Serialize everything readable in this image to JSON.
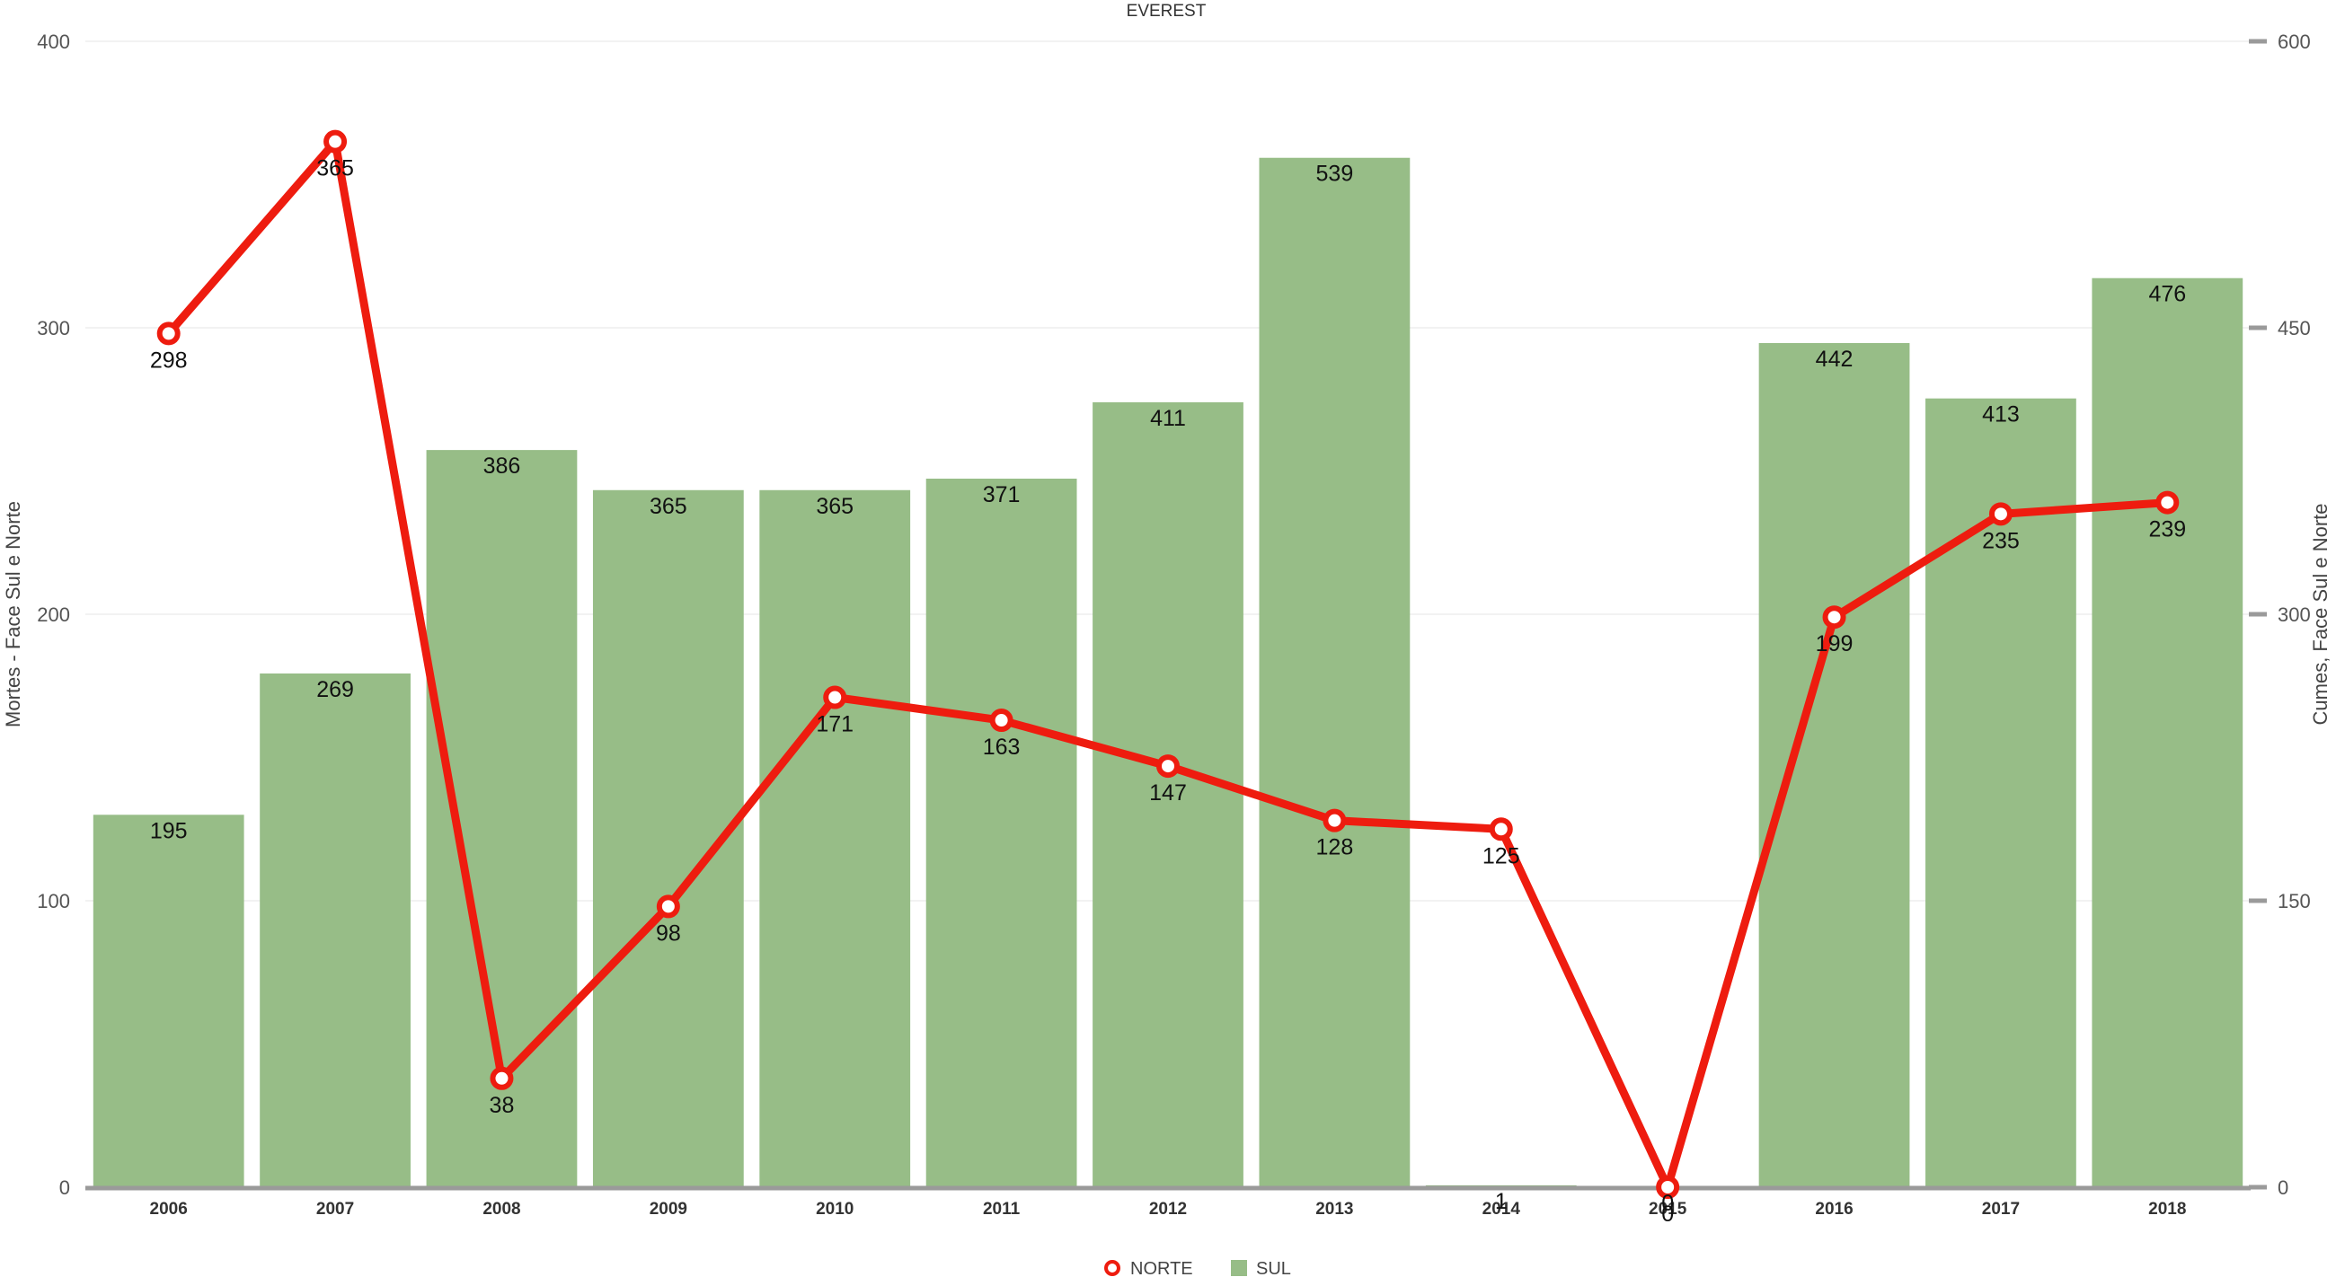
{
  "chart_data": {
    "type": "bar",
    "title": "EVEREST",
    "categories": [
      "2006",
      "2007",
      "2008",
      "2009",
      "2010",
      "2011",
      "2012",
      "2013",
      "2014",
      "2015",
      "2016",
      "2017",
      "2018"
    ],
    "series": [
      {
        "name": "NORTE",
        "type": "line",
        "axis": "left",
        "color": "#ee1c0f",
        "values": [
          298,
          365,
          38,
          98,
          171,
          163,
          147,
          128,
          125,
          0,
          199,
          235,
          239
        ]
      },
      {
        "name": "SUL",
        "type": "bar",
        "axis": "right",
        "color": "#97bd87",
        "values": [
          195,
          269,
          386,
          365,
          365,
          371,
          411,
          539,
          1,
          0,
          442,
          413,
          476
        ]
      }
    ],
    "ylabel_left": "Mortes - Face Sul e Norte",
    "ylabel_right": "Cumes, Face Sul e Norte",
    "ylim_left": [
      0,
      400
    ],
    "ylim_right": [
      0,
      600
    ],
    "yticks_left": [
      0,
      100,
      200,
      300,
      400
    ],
    "yticks_right": [
      0,
      150,
      300,
      450,
      600
    ],
    "grid": true,
    "legend_position": "bottom-center"
  }
}
